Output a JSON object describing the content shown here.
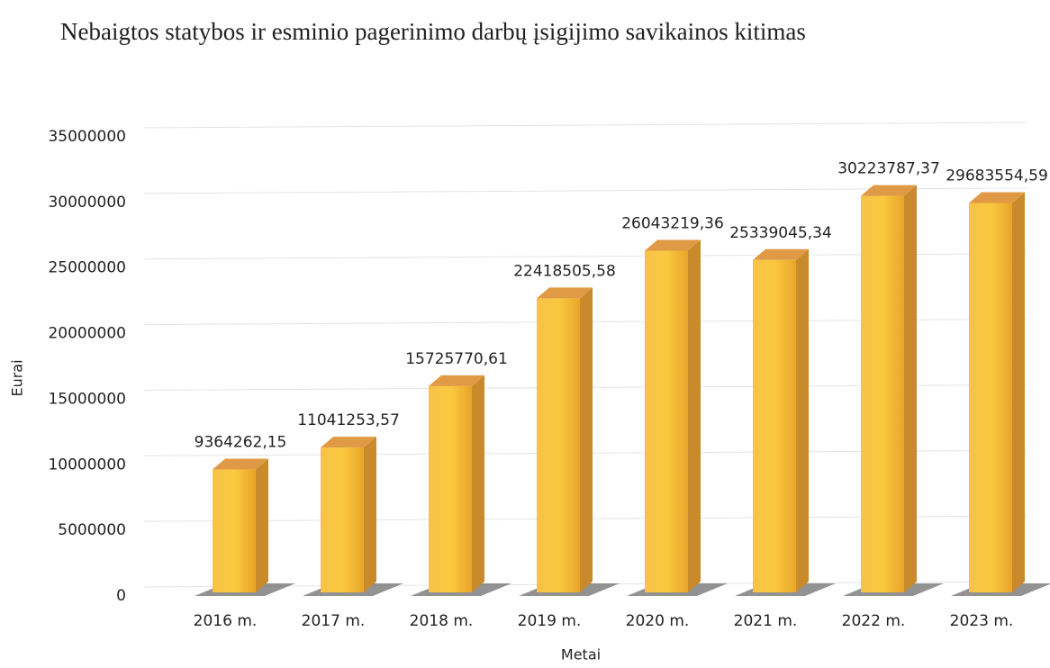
{
  "chart_data": {
    "type": "bar3d",
    "title": "Nebaigtos statybos ir esminio pagerinimo darbų įsigijimo savikainos kitimas",
    "x_label": "Metai",
    "y_label": "Eurai",
    "categories": [
      "2016 m.",
      "2017 m.",
      "2018 m.",
      "2019 m.",
      "2020 m.",
      "2021 m.",
      "2022 m.",
      "2023 m."
    ],
    "values": [
      9364262.15,
      11041253.57,
      15725770.61,
      22418505.58,
      26043219.36,
      25339045.34,
      30223787.37,
      29683554.59
    ],
    "value_labels": [
      "9364262,15",
      "11041253,57",
      "15725770,61",
      "22418505,58",
      "26043219,36",
      "25339045,34",
      "30223787,37",
      "29683554,59"
    ],
    "color": "#f5b530",
    "ylim": [
      0,
      35000000
    ],
    "yticks": [
      0,
      5000000,
      10000000,
      15000000,
      20000000,
      25000000,
      30000000,
      35000000
    ],
    "grid": true
  }
}
